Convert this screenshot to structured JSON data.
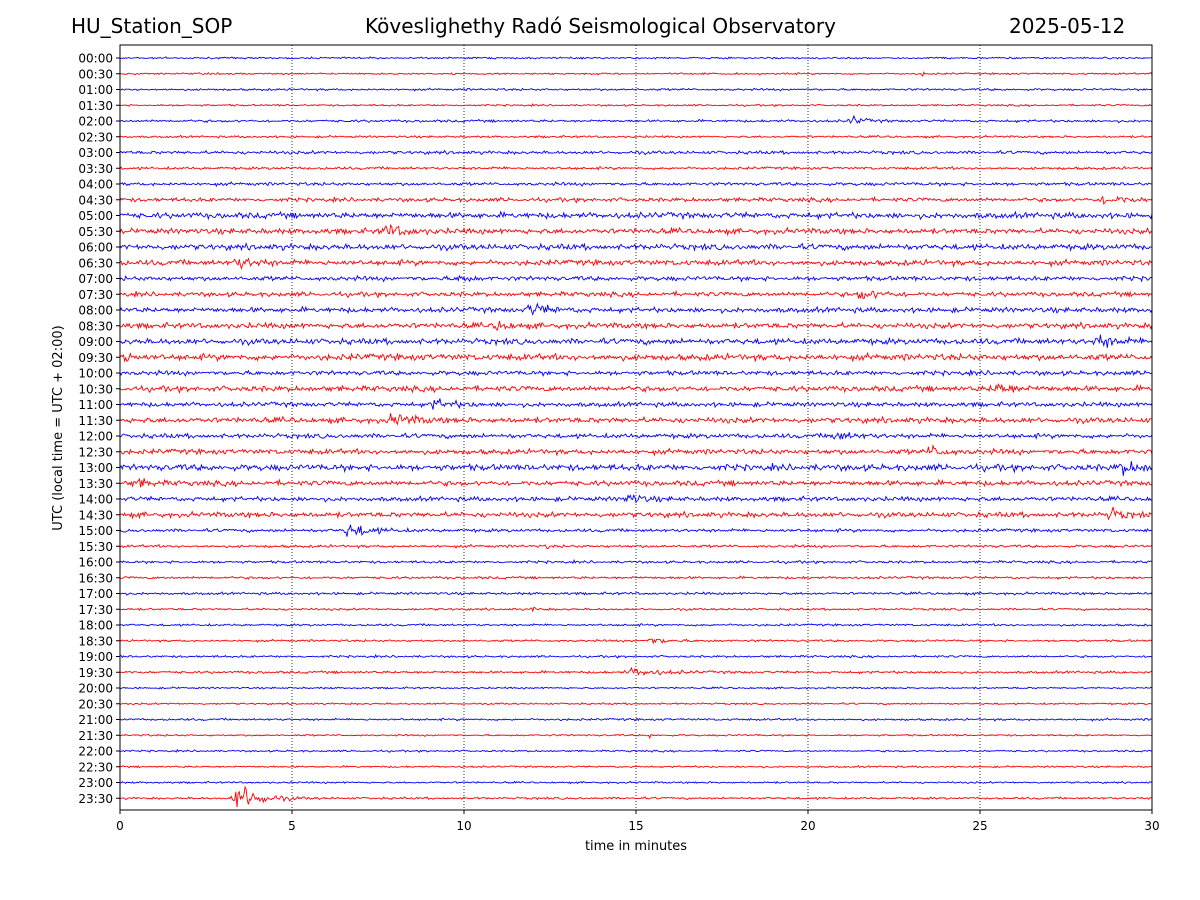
{
  "header": {
    "left": "HU_Station_SOP",
    "center": "Köveslighethy Radó Seismological Observatory",
    "right": "2025-05-12"
  },
  "chart_data": {
    "type": "line",
    "title": "Köveslighethy Radó Seismological Observatory",
    "xlabel": "time in minutes",
    "ylabel": "UTC (local time = UTC + 02:00)",
    "xlim": [
      0,
      30
    ],
    "x_ticks": [
      0,
      5,
      10,
      15,
      20,
      25,
      30
    ],
    "grid": "vertical dotted lines at each x tick",
    "legend": "none",
    "colors": {
      "even_rows": "#0000ff",
      "odd_rows": "#ff0000"
    },
    "rows": [
      {
        "label": "00:00",
        "amp": 0.1,
        "events": []
      },
      {
        "label": "00:30",
        "amp": 0.1,
        "events": [
          {
            "t": 23.3,
            "a": 0.35,
            "w": 0.1
          }
        ]
      },
      {
        "label": "01:00",
        "amp": 0.12,
        "events": []
      },
      {
        "label": "01:30",
        "amp": 0.1,
        "events": []
      },
      {
        "label": "02:00",
        "amp": 0.14,
        "events": [
          {
            "t": 21.3,
            "a": 0.45,
            "w": 0.5
          }
        ]
      },
      {
        "label": "02:30",
        "amp": 0.12,
        "events": []
      },
      {
        "label": "03:00",
        "amp": 0.18,
        "events": []
      },
      {
        "label": "03:30",
        "amp": 0.15,
        "events": []
      },
      {
        "label": "04:00",
        "amp": 0.18,
        "events": []
      },
      {
        "label": "04:30",
        "amp": 0.22,
        "events": [
          {
            "t": 28.7,
            "a": 0.5,
            "w": 0.8
          }
        ]
      },
      {
        "label": "05:00",
        "amp": 0.32,
        "events": []
      },
      {
        "label": "05:30",
        "amp": 0.3,
        "events": [
          {
            "t": 7.8,
            "a": 0.6,
            "w": 0.8
          }
        ]
      },
      {
        "label": "06:00",
        "amp": 0.32,
        "events": []
      },
      {
        "label": "06:30",
        "amp": 0.3,
        "events": [
          {
            "t": 3.5,
            "a": 0.5,
            "w": 0.8
          }
        ]
      },
      {
        "label": "07:00",
        "amp": 0.25,
        "events": [
          {
            "t": 9.9,
            "a": 0.6,
            "w": 0.3
          }
        ]
      },
      {
        "label": "07:30",
        "amp": 0.25,
        "events": [
          {
            "t": 21.6,
            "a": 0.55,
            "w": 0.8
          }
        ]
      },
      {
        "label": "08:00",
        "amp": 0.28,
        "events": [
          {
            "t": 12.0,
            "a": 0.6,
            "w": 0.8
          }
        ]
      },
      {
        "label": "08:30",
        "amp": 0.3,
        "events": [
          {
            "t": 11.0,
            "a": 0.5,
            "w": 0.5
          }
        ]
      },
      {
        "label": "09:00",
        "amp": 0.32,
        "events": [
          {
            "t": 28.5,
            "a": 0.6,
            "w": 0.8
          }
        ]
      },
      {
        "label": "09:30",
        "amp": 0.35,
        "events": [
          {
            "t": 0.1,
            "a": 0.65,
            "w": 0.3
          }
        ]
      },
      {
        "label": "10:00",
        "amp": 0.25,
        "events": []
      },
      {
        "label": "10:30",
        "amp": 0.3,
        "events": [
          {
            "t": 25.5,
            "a": 0.6,
            "w": 0.8
          }
        ]
      },
      {
        "label": "11:00",
        "amp": 0.25,
        "events": [
          {
            "t": 9.2,
            "a": 0.5,
            "w": 0.8
          }
        ]
      },
      {
        "label": "11:30",
        "amp": 0.3,
        "events": [
          {
            "t": 8.0,
            "a": 0.6,
            "w": 0.8
          }
        ]
      },
      {
        "label": "12:00",
        "amp": 0.25,
        "events": [
          {
            "t": 20.8,
            "a": 0.45,
            "w": 0.8
          }
        ]
      },
      {
        "label": "12:30",
        "amp": 0.28,
        "events": [
          {
            "t": 23.6,
            "a": 0.6,
            "w": 0.6
          }
        ]
      },
      {
        "label": "13:00",
        "amp": 0.35,
        "events": [
          {
            "t": 29.2,
            "a": 0.6,
            "w": 0.8
          }
        ]
      },
      {
        "label": "13:30",
        "amp": 0.28,
        "events": [
          {
            "t": 0.5,
            "a": 0.5,
            "w": 0.5
          }
        ]
      },
      {
        "label": "14:00",
        "amp": 0.25,
        "events": [
          {
            "t": 14.8,
            "a": 0.5,
            "w": 0.6
          }
        ]
      },
      {
        "label": "14:30",
        "amp": 0.28,
        "events": [
          {
            "t": 28.8,
            "a": 0.6,
            "w": 0.6
          }
        ]
      },
      {
        "label": "15:00",
        "amp": 0.18,
        "events": [
          {
            "t": 6.7,
            "a": 0.8,
            "w": 0.9
          }
        ]
      },
      {
        "label": "15:30",
        "amp": 0.15,
        "events": [
          {
            "t": 12.4,
            "a": 0.35,
            "w": 0.1
          }
        ]
      },
      {
        "label": "16:00",
        "amp": 0.14,
        "events": []
      },
      {
        "label": "16:30",
        "amp": 0.14,
        "events": []
      },
      {
        "label": "17:00",
        "amp": 0.14,
        "events": []
      },
      {
        "label": "17:30",
        "amp": 0.12,
        "events": [
          {
            "t": 12.0,
            "a": 0.35,
            "w": 0.2
          }
        ]
      },
      {
        "label": "18:00",
        "amp": 0.12,
        "events": []
      },
      {
        "label": "18:30",
        "amp": 0.12,
        "events": [
          {
            "t": 15.5,
            "a": 0.35,
            "w": 0.8
          }
        ]
      },
      {
        "label": "19:00",
        "amp": 0.12,
        "events": []
      },
      {
        "label": "19:30",
        "amp": 0.14,
        "events": [
          {
            "t": 15.0,
            "a": 0.4,
            "w": 1.2
          }
        ]
      },
      {
        "label": "20:00",
        "amp": 0.1,
        "events": []
      },
      {
        "label": "20:30",
        "amp": 0.1,
        "events": []
      },
      {
        "label": "21:00",
        "amp": 0.12,
        "events": []
      },
      {
        "label": "21:30",
        "amp": 0.1,
        "events": [
          {
            "t": 15.4,
            "a": 0.3,
            "w": 0.1
          }
        ]
      },
      {
        "label": "22:00",
        "amp": 0.1,
        "events": []
      },
      {
        "label": "22:30",
        "amp": 0.1,
        "events": []
      },
      {
        "label": "23:00",
        "amp": 0.1,
        "events": []
      },
      {
        "label": "23:30",
        "amp": 0.12,
        "events": [
          {
            "t": 3.5,
            "a": 1.7,
            "w": 0.9
          }
        ]
      }
    ]
  }
}
